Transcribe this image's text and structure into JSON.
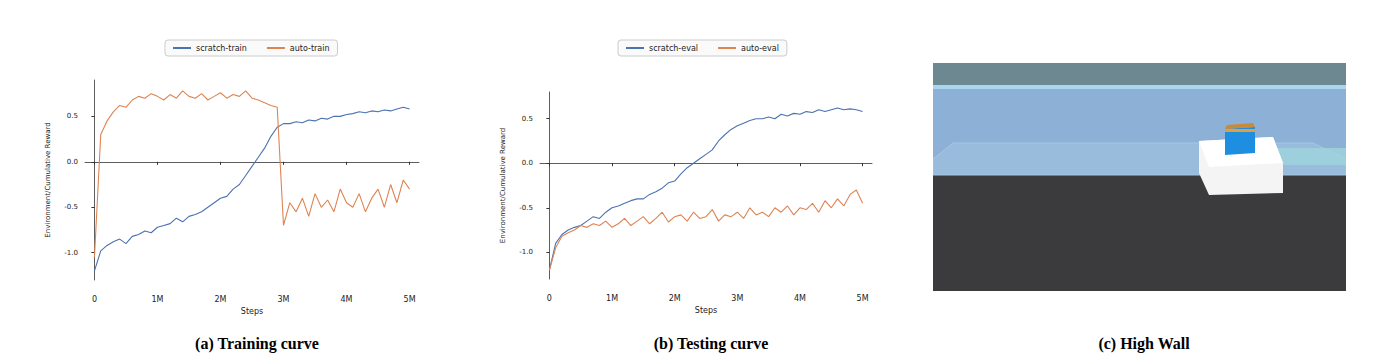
{
  "chart_data": [
    {
      "type": "line",
      "title": "(a) Training curve",
      "x_label": "Steps",
      "y_label": "Environment/Cumulative Reward",
      "legend": "upper center",
      "grid": false,
      "xlim": [
        -150000,
        5150000
      ],
      "xticks": [
        0,
        {
          "value": 1000000,
          "label": "1M"
        },
        {
          "value": 2000000,
          "label": "2M"
        },
        {
          "value": 3000000,
          "label": "3M"
        },
        {
          "value": 4000000,
          "label": "4M"
        },
        {
          "value": 5000000,
          "label": "5M"
        }
      ],
      "ylim": [
        -1.3,
        0.9
      ],
      "yticks": [
        {
          "value": -1,
          "label": "-1.0"
        },
        {
          "value": -0.5,
          "label": "-0.5"
        },
        {
          "value": 0,
          "label": "0.0"
        },
        {
          "value": 0.5,
          "label": "0.5"
        }
      ],
      "x": [
        0,
        100000,
        200000,
        300000,
        400000,
        500000,
        600000,
        700000,
        800000,
        900000,
        1000000,
        1100000,
        1200000,
        1300000,
        1400000,
        1500000,
        1600000,
        1700000,
        1800000,
        1900000,
        2000000,
        2100000,
        2200000,
        2300000,
        2400000,
        2500000,
        2600000,
        2700000,
        2800000,
        2900000,
        3000000,
        3100000,
        3200000,
        3300000,
        3400000,
        3500000,
        3600000,
        3700000,
        3800000,
        3900000,
        4000000,
        4100000,
        4200000,
        4300000,
        4400000,
        4500000,
        4600000,
        4700000,
        4800000,
        4900000,
        5000000
      ],
      "series": [
        {
          "name": "scratch-train",
          "color": "#4c72b0",
          "values": [
            -1.2,
            -0.98,
            -0.92,
            -0.88,
            -0.85,
            -0.9,
            -0.82,
            -0.8,
            -0.76,
            -0.78,
            -0.72,
            -0.7,
            -0.68,
            -0.62,
            -0.66,
            -0.6,
            -0.58,
            -0.55,
            -0.5,
            -0.45,
            -0.4,
            -0.38,
            -0.3,
            -0.25,
            -0.15,
            -0.05,
            0.05,
            0.15,
            0.28,
            0.38,
            0.42,
            0.42,
            0.44,
            0.43,
            0.46,
            0.45,
            0.48,
            0.47,
            0.5,
            0.5,
            0.52,
            0.53,
            0.55,
            0.54,
            0.56,
            0.55,
            0.57,
            0.56,
            0.58,
            0.6,
            0.58
          ]
        },
        {
          "name": "auto-train",
          "color": "#dd8452",
          "values": [
            -1.05,
            0.3,
            0.45,
            0.55,
            0.62,
            0.6,
            0.68,
            0.72,
            0.7,
            0.75,
            0.72,
            0.68,
            0.74,
            0.7,
            0.78,
            0.72,
            0.7,
            0.75,
            0.68,
            0.72,
            0.76,
            0.7,
            0.74,
            0.72,
            0.78,
            0.7,
            0.68,
            0.65,
            0.62,
            0.6,
            -0.7,
            -0.45,
            -0.55,
            -0.4,
            -0.6,
            -0.35,
            -0.5,
            -0.42,
            -0.55,
            -0.3,
            -0.45,
            -0.5,
            -0.35,
            -0.55,
            -0.4,
            -0.3,
            -0.5,
            -0.25,
            -0.45,
            -0.2,
            -0.3
          ]
        }
      ]
    },
    {
      "type": "line",
      "title": "(b) Testing curve",
      "x_label": "Steps",
      "y_label": "Environment/Cumulative Reward",
      "legend": "upper center",
      "grid": false,
      "xlim": [
        -150000,
        5150000
      ],
      "xticks": [
        0,
        {
          "value": 1000000,
          "label": "1M"
        },
        {
          "value": 2000000,
          "label": "2M"
        },
        {
          "value": 3000000,
          "label": "3M"
        },
        {
          "value": 4000000,
          "label": "4M"
        },
        {
          "value": 5000000,
          "label": "5M"
        }
      ],
      "ylim": [
        -1.3,
        0.8
      ],
      "yticks": [
        {
          "value": -1,
          "label": "-1.0"
        },
        {
          "value": -0.5,
          "label": "-0.5"
        },
        {
          "value": 0,
          "label": "0.0"
        },
        {
          "value": 0.5,
          "label": "0.5"
        }
      ],
      "x": [
        0,
        100000,
        200000,
        300000,
        400000,
        500000,
        600000,
        700000,
        800000,
        900000,
        1000000,
        1100000,
        1200000,
        1300000,
        1400000,
        1500000,
        1600000,
        1700000,
        1800000,
        1900000,
        2000000,
        2100000,
        2200000,
        2300000,
        2400000,
        2500000,
        2600000,
        2700000,
        2800000,
        2900000,
        3000000,
        3100000,
        3200000,
        3300000,
        3400000,
        3500000,
        3600000,
        3700000,
        3800000,
        3900000,
        4000000,
        4100000,
        4200000,
        4300000,
        4400000,
        4500000,
        4600000,
        4700000,
        4800000,
        4900000,
        5000000
      ],
      "series": [
        {
          "name": "scratch-eval",
          "color": "#4c72b0",
          "values": [
            -1.2,
            -0.9,
            -0.8,
            -0.75,
            -0.72,
            -0.7,
            -0.65,
            -0.6,
            -0.62,
            -0.55,
            -0.5,
            -0.48,
            -0.45,
            -0.42,
            -0.4,
            -0.4,
            -0.35,
            -0.32,
            -0.28,
            -0.22,
            -0.2,
            -0.12,
            -0.05,
            0.0,
            0.05,
            0.1,
            0.15,
            0.25,
            0.32,
            0.38,
            0.42,
            0.45,
            0.48,
            0.5,
            0.5,
            0.52,
            0.5,
            0.55,
            0.53,
            0.56,
            0.55,
            0.58,
            0.57,
            0.6,
            0.58,
            0.6,
            0.62,
            0.6,
            0.61,
            0.6,
            0.58
          ]
        },
        {
          "name": "auto-eval",
          "color": "#dd8452",
          "values": [
            -1.2,
            -0.95,
            -0.82,
            -0.78,
            -0.75,
            -0.7,
            -0.72,
            -0.68,
            -0.7,
            -0.65,
            -0.72,
            -0.68,
            -0.62,
            -0.7,
            -0.65,
            -0.6,
            -0.68,
            -0.62,
            -0.55,
            -0.66,
            -0.6,
            -0.58,
            -0.65,
            -0.55,
            -0.62,
            -0.6,
            -0.52,
            -0.65,
            -0.58,
            -0.6,
            -0.55,
            -0.62,
            -0.5,
            -0.58,
            -0.55,
            -0.6,
            -0.5,
            -0.55,
            -0.48,
            -0.58,
            -0.5,
            -0.52,
            -0.45,
            -0.55,
            -0.42,
            -0.5,
            -0.4,
            -0.48,
            -0.35,
            -0.3,
            -0.45
          ]
        }
      ]
    }
  ],
  "image": {
    "caption": "(c) High Wall"
  }
}
